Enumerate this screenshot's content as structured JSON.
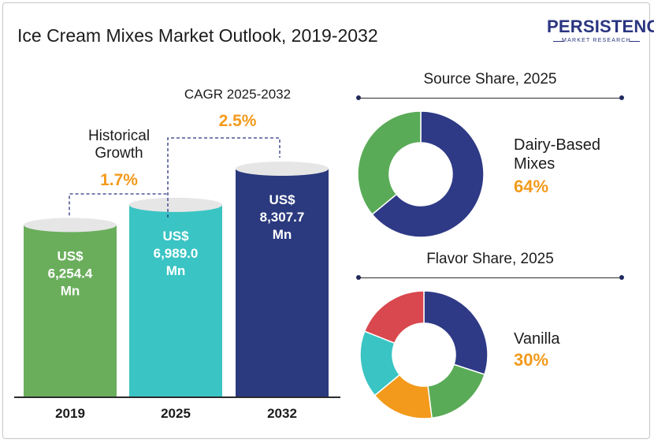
{
  "title": "Ice Cream Mixes Market Outlook, 2019-2032",
  "logo": {
    "brand": "PERSISTENCE",
    "tagline": "MARKET RESEARCH"
  },
  "annotations": {
    "historical_label_line1": "Historical",
    "historical_label_line2": "Growth",
    "historical_value": "1.7%",
    "cagr_label": "CAGR 2025-2032",
    "cagr_value": "2.5%"
  },
  "chart_data": [
    {
      "type": "bar",
      "categories": [
        "2019",
        "2025",
        "2032"
      ],
      "values": [
        6254.4,
        6989.0,
        8307.7
      ],
      "data_labels": [
        [
          "US$",
          "6,254.4",
          "Mn"
        ],
        [
          "US$",
          "6,989.0",
          "Mn"
        ],
        [
          "US$",
          "8,307.7",
          "Mn"
        ]
      ],
      "colors": [
        "#6aae5c",
        "#3ac4c4",
        "#2b3a7e"
      ],
      "ylim": [
        0,
        8307.7
      ],
      "grid": false
    },
    {
      "type": "pie",
      "title": "Source Share, 2025",
      "values": [
        64,
        36
      ],
      "colors": [
        "#2e3a86",
        "#5aab57"
      ],
      "callout_label_line1": "Dairy-Based",
      "callout_label_line2": "Mixes",
      "callout_value": "64%"
    },
    {
      "type": "pie",
      "title": "Flavor Share, 2025",
      "values": [
        30,
        18,
        16,
        17,
        19
      ],
      "colors": [
        "#2e3a86",
        "#5aab57",
        "#f39a1c",
        "#3ac4c4",
        "#d9484e"
      ],
      "callout_label": "Vanilla",
      "callout_value": "30%"
    }
  ],
  "colors": {
    "accent": "#f39a1c",
    "text": "#1c1c1c",
    "brand": "#2b3580"
  }
}
